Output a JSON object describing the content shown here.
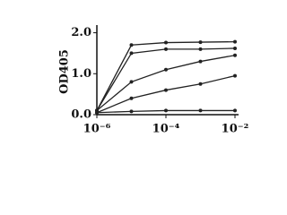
{
  "chart_data": {
    "type": "line",
    "ylabel": "OD405",
    "x": [
      1e-06,
      1e-05,
      0.0001,
      0.001,
      0.01
    ],
    "xscale": "log",
    "series": [
      {
        "color": "#222222",
        "values": [
          0.1,
          1.7,
          1.76,
          1.77,
          1.78
        ]
      },
      {
        "color": "#222222",
        "values": [
          0.1,
          1.5,
          1.6,
          1.6,
          1.62
        ]
      },
      {
        "color": "#222222",
        "values": [
          0.1,
          0.8,
          1.1,
          1.3,
          1.45
        ]
      },
      {
        "color": "#222222",
        "values": [
          0.05,
          0.4,
          0.6,
          0.75,
          0.95
        ]
      },
      {
        "color": "#222222",
        "values": [
          0.05,
          0.08,
          0.1,
          0.1,
          0.1
        ]
      }
    ],
    "xlim": [
      1e-06,
      0.01
    ],
    "xticks": [
      {
        "value": 1e-06,
        "label": "10⁻⁶"
      },
      {
        "value": 0.0001,
        "label": "10⁻⁴"
      },
      {
        "value": 0.01,
        "label": "10⁻²"
      }
    ],
    "ylim": [
      0,
      2.1
    ],
    "yticks": [
      {
        "value": 0,
        "label": "0.0"
      },
      {
        "value": 1,
        "label": "1.0"
      },
      {
        "value": 2,
        "label": "2.0"
      }
    ],
    "grid": false
  }
}
